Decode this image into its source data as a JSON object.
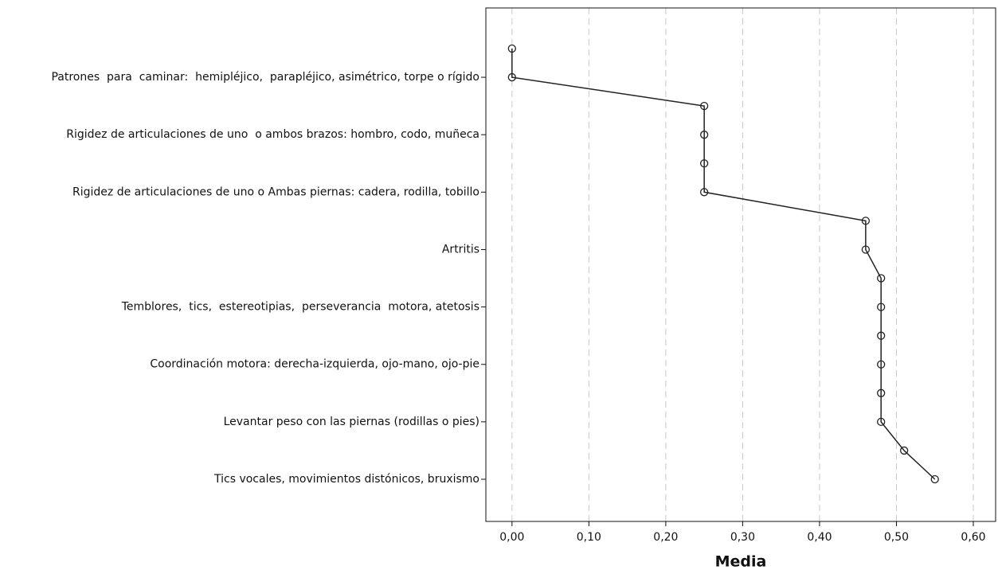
{
  "chart_data": {
    "type": "line",
    "x_label": "Media",
    "categories": [
      null,
      "Patrones  para  caminar:  hemipléjico,  parapléjico, asimétrico, torpe o rígido",
      null,
      "Rigidez de articulaciones de uno  o ambos brazos: hombro, codo, muñeca",
      null,
      "Rigidez de articulaciones de uno o Ambas piernas: cadera, rodilla, tobillo",
      null,
      "Artritis",
      null,
      "Temblores,  tics,  estereotipias,  perseverancia  motora, atetosis",
      null,
      "Coordinación motora: derecha-izquierda, ojo-mano, ojo-pie",
      null,
      "Levantar peso con las piernas (rodillas o pies)",
      null,
      "Tics vocales, movimientos distónicos, bruxismo"
    ],
    "values": [
      0,
      0,
      0.25,
      0.25,
      0.25,
      0.25,
      0.46,
      0.46,
      0.48,
      0.48,
      0.48,
      0.48,
      0.48,
      0.48,
      0.51,
      0.55
    ],
    "color": "#222222",
    "xlim": [
      -0.034,
      0.629
    ],
    "xticks": [
      {
        "value": 0,
        "label": "0,00"
      },
      {
        "value": 0.1,
        "label": "0,10"
      },
      {
        "value": 0.2,
        "label": "0,20"
      },
      {
        "value": 0.3,
        "label": "0,30"
      },
      {
        "value": 0.4,
        "label": "0,40"
      },
      {
        "value": 0.5,
        "label": "0,50"
      },
      {
        "value": 0.6,
        "label": "0,60"
      }
    ],
    "grid": true
  }
}
